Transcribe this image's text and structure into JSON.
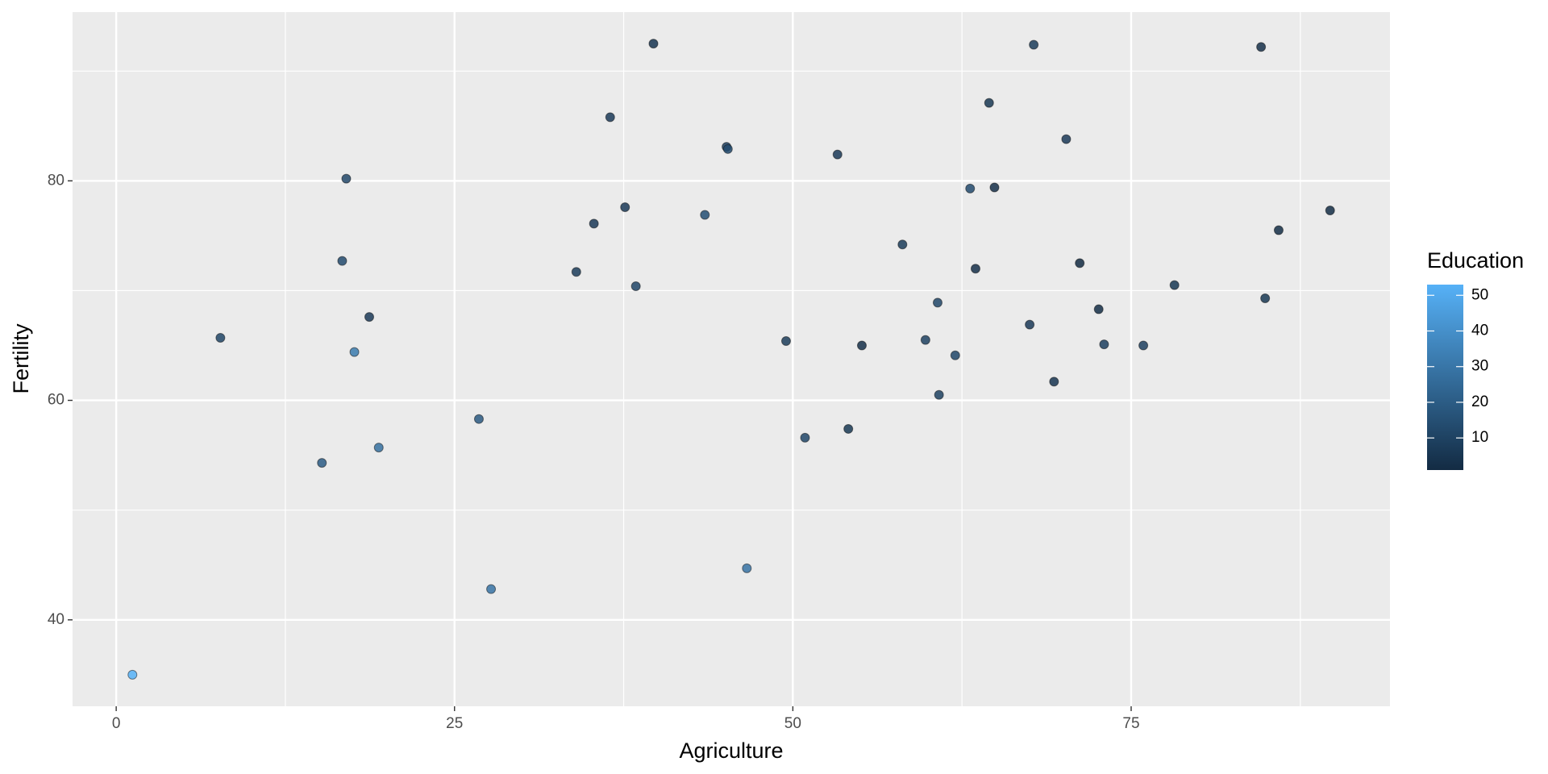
{
  "chart_data": {
    "type": "scatter",
    "x_label": "Agriculture",
    "y_label": "Fertility",
    "x": [
      17.0,
      45.1,
      39.7,
      36.5,
      43.5,
      35.3,
      70.2,
      67.8,
      53.3,
      45.2,
      64.5,
      62.0,
      67.5,
      60.7,
      69.3,
      72.6,
      34.0,
      19.4,
      15.2,
      73.0,
      59.8,
      55.1,
      50.9,
      54.1,
      71.2,
      58.1,
      63.5,
      60.8,
      26.8,
      49.5,
      85.9,
      84.9,
      89.7,
      78.2,
      64.9,
      75.9,
      84.6,
      63.1,
      38.4,
      7.7,
      16.7,
      17.6,
      37.6,
      18.7,
      1.2,
      46.6,
      27.7
    ],
    "series": [
      {
        "name": "Education",
        "values": [
          80.2,
          83.1,
          92.5,
          85.8,
          76.9,
          76.1,
          83.8,
          92.4,
          82.4,
          82.9,
          87.1,
          64.1,
          66.9,
          68.9,
          61.7,
          68.3,
          71.7,
          55.7,
          54.3,
          65.1,
          65.5,
          65.0,
          56.6,
          57.4,
          72.5,
          74.2,
          72.0,
          60.5,
          58.3,
          65.4,
          75.5,
          69.3,
          77.3,
          70.5,
          79.4,
          65.0,
          92.2,
          79.3,
          70.4,
          65.7,
          72.7,
          64.4,
          77.6,
          67.6,
          35.0,
          44.7,
          42.8
        ],
        "color_values": [
          12,
          9,
          5,
          7,
          15,
          7,
          7,
          8,
          7,
          13,
          6,
          12,
          7,
          12,
          5,
          2,
          8,
          28,
          20,
          9,
          10,
          3,
          12,
          6,
          1,
          8,
          3,
          10,
          19,
          8,
          2,
          6,
          2,
          6,
          3,
          9,
          3,
          13,
          12,
          11,
          13,
          32,
          7,
          7,
          53,
          29,
          29
        ]
      }
    ],
    "xlim": [
      -3.225,
      94.125
    ],
    "xticks": [
      0,
      25,
      50,
      75
    ],
    "ylim": [
      32.125,
      95.375
    ],
    "yticks": [
      40,
      60,
      80
    ],
    "grid": true,
    "colorscale": {
      "title": "Education",
      "low": "#132B43",
      "high": "#56B1F7",
      "lim": [
        1,
        53
      ],
      "ticks": [
        10,
        20,
        30,
        40,
        50
      ]
    },
    "legend_position": "right"
  }
}
